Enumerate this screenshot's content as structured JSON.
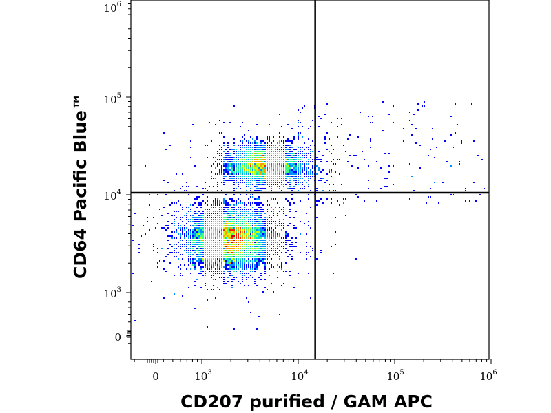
{
  "chart_data": {
    "type": "scatter",
    "xlabel": "CD207 purified / GAM APC",
    "ylabel": "CD64 Pacific Blue™",
    "xscale": "biexponential (log)",
    "yscale": "biexponential (log)",
    "x_ticks": [
      {
        "base": "0",
        "exp": ""
      },
      {
        "base": "10",
        "exp": "3"
      },
      {
        "base": "10",
        "exp": "4"
      },
      {
        "base": "10",
        "exp": "5"
      },
      {
        "base": "10",
        "exp": "6"
      }
    ],
    "y_ticks": [
      {
        "base": "0",
        "exp": ""
      },
      {
        "base": "10",
        "exp": "3"
      },
      {
        "base": "10",
        "exp": "4"
      },
      {
        "base": "10",
        "exp": "5"
      },
      {
        "base": "10",
        "exp": "6"
      }
    ],
    "quadrant_gate": {
      "x": 15000,
      "y": 10500
    },
    "populations": [
      {
        "center_x": 2000,
        "center_y": 3500,
        "spread_log_x": 0.22,
        "spread_log_y": 0.15,
        "relative_size": 0.65
      },
      {
        "center_x": 4500,
        "center_y": 20000,
        "spread_log_x": 0.2,
        "spread_log_y": 0.1,
        "relative_size": 0.35
      }
    ],
    "density_colors": [
      "#00008b",
      "#0000ff",
      "#0090ff",
      "#00e0e0",
      "#40ff80",
      "#d0ff00",
      "#ffa000",
      "#ff2000",
      "#cc0000"
    ],
    "grid": false
  }
}
